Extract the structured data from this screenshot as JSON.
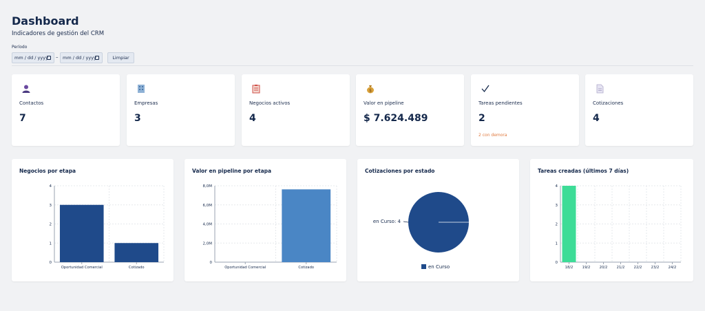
{
  "header": {
    "title": "Dashboard",
    "subtitle": "Indicadores de gestión del CRM",
    "period_label": "Período",
    "date_placeholder": "mm / dd / yyyy",
    "date_separator": "–",
    "clear_label": "Limpiar"
  },
  "kpis": [
    {
      "icon": "person-icon",
      "label": "Contactos",
      "value": "7"
    },
    {
      "icon": "building-icon",
      "label": "Empresas",
      "value": "3"
    },
    {
      "icon": "clipboard-icon",
      "label": "Negocios activos",
      "value": "4"
    },
    {
      "icon": "money-bag-icon",
      "label": "Valor en pipeline",
      "value": "$ 7.624.489"
    },
    {
      "icon": "checkmark-icon",
      "label": "Tareas pendientes",
      "value": "2",
      "note": "2 con demora"
    },
    {
      "icon": "document-icon",
      "label": "Cotizaciones",
      "value": "4"
    }
  ],
  "colors": {
    "dark_blue": "#1f4a8a",
    "mid_blue": "#4a86c5",
    "green": "#3ddc97",
    "warning": "#e07a3f"
  },
  "chart_data": [
    {
      "type": "bar",
      "title": "Negocios por etapa",
      "categories": [
        "Oportunidad Comercial",
        "Cotizado"
      ],
      "values": [
        3,
        1
      ],
      "yticks": [
        "0",
        "1",
        "2",
        "3",
        "4"
      ],
      "ylim": [
        0,
        4
      ],
      "grid": true
    },
    {
      "type": "bar",
      "title": "Valor en pipeline por etapa",
      "categories": [
        "Oportunidad Comercial",
        "Cotizado"
      ],
      "values": [
        0,
        7624489
      ],
      "yticks": [
        "0",
        "2,0M",
        "4,0M",
        "6,0M",
        "8,0M"
      ],
      "ylim": [
        0,
        8000000
      ],
      "grid": true
    },
    {
      "type": "pie",
      "title": "Cotizaciones por estado",
      "labels": [
        "en Curso"
      ],
      "values": [
        4
      ],
      "slice_label": "en Curso: 4",
      "legend": "bottom"
    },
    {
      "type": "bar",
      "title": "Tareas creadas (últimos 7 días)",
      "categories": [
        "18/2",
        "19/2",
        "20/2",
        "21/2",
        "22/2",
        "23/2",
        "24/2"
      ],
      "values": [
        4,
        0,
        0,
        0,
        0,
        0,
        0
      ],
      "yticks": [
        "0",
        "1",
        "2",
        "3",
        "4"
      ],
      "ylim": [
        0,
        4
      ],
      "grid": true
    }
  ]
}
